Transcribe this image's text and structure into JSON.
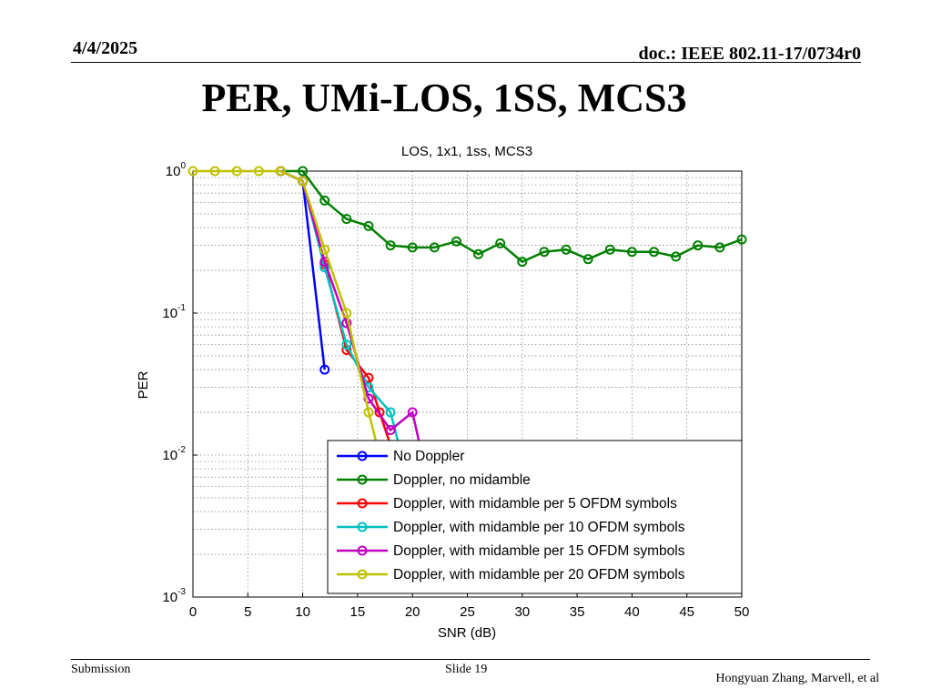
{
  "header": {
    "date": "4/4/2025",
    "doc": "doc.: IEEE 802.11-17/0734r0"
  },
  "slide_title": "PER, UMi-LOS, 1SS, MCS3",
  "footer": {
    "submission": "Submission",
    "slide": "Slide 19",
    "author": "Hongyuan Zhang, Marvell, et al"
  },
  "chart_data": {
    "type": "line",
    "title": "LOS, 1x1, 1ss, MCS3",
    "xlabel": "SNR (dB)",
    "ylabel": "PER",
    "xlim": [
      0,
      50
    ],
    "ylim": [
      0.001,
      1
    ],
    "yscale": "log",
    "grid": true,
    "legend_position": "bottom-right",
    "xticks": [
      "0",
      "5",
      "10",
      "15",
      "20",
      "25",
      "30",
      "35",
      "40",
      "45",
      "50"
    ],
    "yticks": [
      {
        "base": "10",
        "exp": "0"
      },
      {
        "base": "10",
        "exp": "-1"
      },
      {
        "base": "10",
        "exp": "-2"
      },
      {
        "base": "10",
        "exp": "-3"
      }
    ],
    "series": [
      {
        "name": "No Doppler",
        "color": "#0000ff",
        "x": [
          8,
          10,
          12
        ],
        "y": [
          1.0,
          0.85,
          0.04
        ]
      },
      {
        "name": "Doppler, no midamble",
        "color": "#008000",
        "x": [
          8,
          10,
          12,
          14,
          16,
          18,
          20,
          22,
          24,
          26,
          28,
          30,
          32,
          34,
          36,
          38,
          40,
          42,
          44,
          46,
          48,
          50
        ],
        "y": [
          1.0,
          1.0,
          0.62,
          0.46,
          0.41,
          0.3,
          0.29,
          0.29,
          0.32,
          0.26,
          0.31,
          0.23,
          0.27,
          0.28,
          0.24,
          0.28,
          0.27,
          0.27,
          0.25,
          0.3,
          0.29,
          0.33
        ]
      },
      {
        "name": "Doppler, with midamble per 5 OFDM symbols",
        "color": "#ff0000",
        "x": [
          8,
          10,
          12,
          14,
          16,
          17,
          18.5
        ],
        "y": [
          1.0,
          0.85,
          0.22,
          0.055,
          0.035,
          0.02,
          0.009
        ]
      },
      {
        "name": "Doppler, with midamble per 10 OFDM symbols",
        "color": "#00c0c0",
        "x": [
          8,
          10,
          12,
          14,
          16,
          18,
          19
        ],
        "y": [
          1.0,
          0.85,
          0.21,
          0.06,
          0.03,
          0.02,
          0.01
        ]
      },
      {
        "name": "Doppler, with midamble per 15 OFDM symbols",
        "color": "#c000c0",
        "x": [
          8,
          10,
          12,
          14,
          16,
          18,
          20,
          21
        ],
        "y": [
          1.0,
          0.85,
          0.23,
          0.085,
          0.025,
          0.015,
          0.02,
          0.009
        ]
      },
      {
        "name": "Doppler, with midamble per 20 OFDM symbols",
        "color": "#c0c000",
        "x": [
          0,
          2,
          4,
          6,
          8,
          10,
          12,
          14,
          16,
          17
        ],
        "y": [
          1.0,
          1.0,
          1.0,
          1.0,
          1.0,
          0.85,
          0.28,
          0.1,
          0.02,
          0.01
        ]
      }
    ]
  }
}
